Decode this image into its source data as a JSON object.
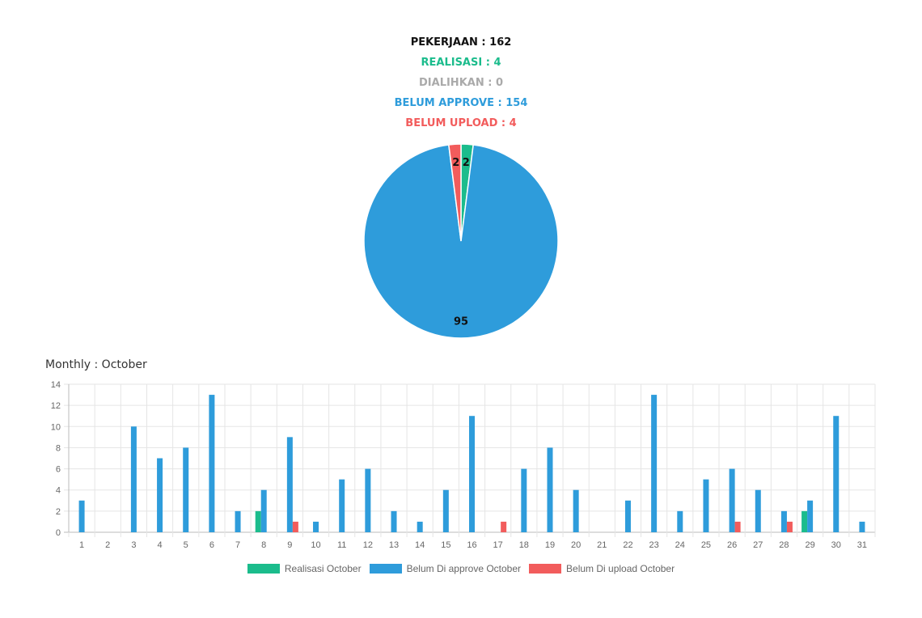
{
  "summary": {
    "pekerjaan": "PEKERJAAN : 162",
    "realisasi": "REALISASI : 4",
    "dialihkan": "DIALIHKAN : 0",
    "belum_approve": "BELUM APPROVE : 154",
    "belum_upload": "BELUM UPLOAD : 4"
  },
  "colors": {
    "black": "#111111",
    "green": "#1bbc8c",
    "gray": "#aaaaaa",
    "blue": "#2e9cdb",
    "red": "#f25c5c"
  },
  "monthly_title": "Monthly : October",
  "chart_data": [
    {
      "type": "pie",
      "slices": [
        {
          "value": 2,
          "label": "2",
          "color": "#1bbc8c"
        },
        {
          "value": 95,
          "label": "95",
          "color": "#2e9cdb"
        },
        {
          "value": 2,
          "label": "2",
          "color": "#f25c5c"
        }
      ]
    },
    {
      "type": "bar",
      "categories": [
        "1",
        "2",
        "3",
        "4",
        "5",
        "6",
        "7",
        "8",
        "9",
        "10",
        "11",
        "12",
        "13",
        "14",
        "15",
        "16",
        "17",
        "18",
        "19",
        "20",
        "21",
        "22",
        "23",
        "24",
        "25",
        "26",
        "27",
        "28",
        "29",
        "30",
        "31"
      ],
      "ylim": [
        0,
        14
      ],
      "yticks": [
        0,
        2,
        4,
        6,
        8,
        10,
        12,
        14
      ],
      "grid": true,
      "legend_position": "bottom",
      "series": [
        {
          "name": "Realisasi October",
          "color": "#1bbc8c",
          "values": [
            0,
            0,
            0,
            0,
            0,
            0,
            0,
            2,
            0,
            0,
            0,
            0,
            0,
            0,
            0,
            0,
            0,
            0,
            0,
            0,
            0,
            0,
            0,
            0,
            0,
            0,
            0,
            0,
            2,
            0,
            0
          ]
        },
        {
          "name": "Belum Di approve October",
          "color": "#2e9cdb",
          "values": [
            3,
            0,
            10,
            7,
            8,
            13,
            2,
            4,
            9,
            1,
            5,
            6,
            2,
            1,
            4,
            11,
            0,
            6,
            8,
            4,
            0,
            3,
            13,
            2,
            5,
            6,
            4,
            2,
            3,
            11,
            1
          ]
        },
        {
          "name": "Belum Di upload October",
          "color": "#f25c5c",
          "values": [
            0,
            0,
            0,
            0,
            0,
            0,
            0,
            0,
            1,
            0,
            0,
            0,
            0,
            0,
            0,
            0,
            1,
            0,
            0,
            0,
            0,
            0,
            0,
            0,
            0,
            1,
            0,
            1,
            0,
            0,
            0
          ]
        }
      ]
    }
  ]
}
